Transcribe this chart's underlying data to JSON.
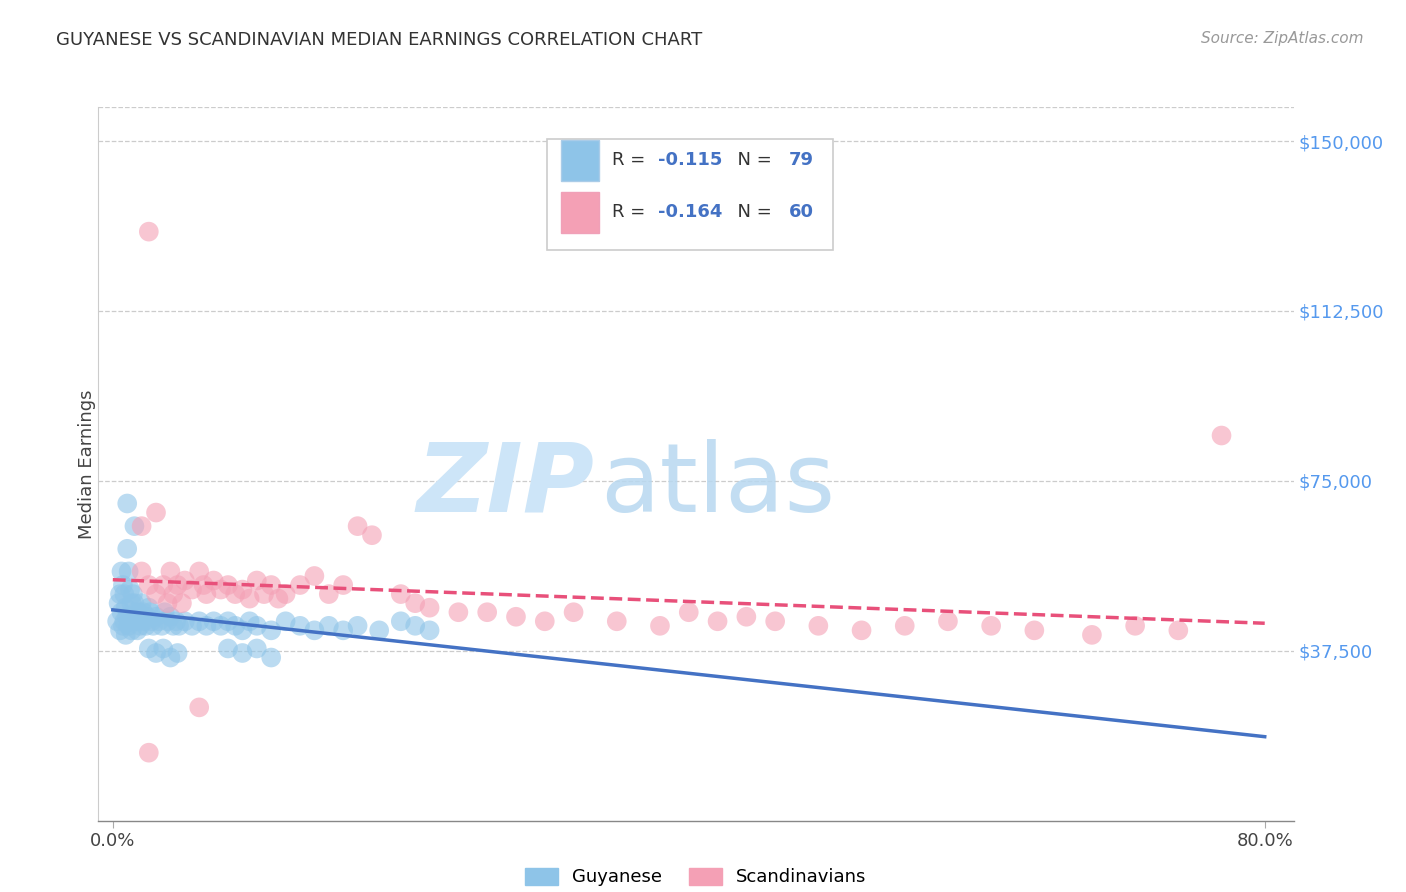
{
  "title": "GUYANESE VS SCANDINAVIAN MEDIAN EARNINGS CORRELATION CHART",
  "source": "Source: ZipAtlas.com",
  "ylabel": "Median Earnings",
  "y_ticks": [
    0,
    37500,
    75000,
    112500,
    150000
  ],
  "y_tick_labels": [
    "",
    "$37,500",
    "$75,000",
    "$112,500",
    "$150,000"
  ],
  "xlim": [
    0.0,
    0.8
  ],
  "ylim": [
    0,
    157500
  ],
  "background_color": "#ffffff",
  "guyanese_color": "#8ec4e8",
  "scandinavian_color": "#f4a0b5",
  "guyanese_line_color": "#4472c4",
  "scandinavian_line_color": "#e8507a",
  "watermark_zip_color": "#cce0f5",
  "watermark_atlas_color": "#b0d0f0",
  "legend_R_guyanese": "-0.115",
  "legend_N_guyanese": "79",
  "legend_R_scandinavian": "-0.164",
  "legend_N_scandinavian": "60",
  "guyanese_x": [
    0.003,
    0.004,
    0.005,
    0.005,
    0.006,
    0.006,
    0.007,
    0.007,
    0.008,
    0.008,
    0.009,
    0.009,
    0.01,
    0.01,
    0.01,
    0.011,
    0.011,
    0.012,
    0.012,
    0.013,
    0.013,
    0.014,
    0.014,
    0.015,
    0.015,
    0.016,
    0.017,
    0.017,
    0.018,
    0.019,
    0.02,
    0.021,
    0.022,
    0.023,
    0.024,
    0.025,
    0.026,
    0.027,
    0.028,
    0.03,
    0.032,
    0.034,
    0.036,
    0.038,
    0.04,
    0.042,
    0.044,
    0.046,
    0.05,
    0.055,
    0.06,
    0.065,
    0.07,
    0.075,
    0.08,
    0.085,
    0.09,
    0.095,
    0.1,
    0.11,
    0.12,
    0.13,
    0.14,
    0.15,
    0.16,
    0.17,
    0.185,
    0.2,
    0.21,
    0.22,
    0.025,
    0.03,
    0.035,
    0.04,
    0.045,
    0.08,
    0.09,
    0.1,
    0.11
  ],
  "guyanese_y": [
    44000,
    48000,
    50000,
    42000,
    55000,
    46000,
    52000,
    43000,
    50000,
    44000,
    47000,
    41000,
    70000,
    60000,
    45000,
    55000,
    43000,
    51000,
    44000,
    48000,
    42000,
    50000,
    44000,
    65000,
    48000,
    46000,
    44000,
    42000,
    46000,
    43000,
    48000,
    46000,
    44000,
    43000,
    45000,
    47000,
    46000,
    44000,
    43000,
    45000,
    44000,
    43000,
    46000,
    44000,
    45000,
    43000,
    44000,
    43000,
    44000,
    43000,
    44000,
    43000,
    44000,
    43000,
    44000,
    43000,
    42000,
    44000,
    43000,
    42000,
    44000,
    43000,
    42000,
    43000,
    42000,
    43000,
    42000,
    44000,
    43000,
    42000,
    38000,
    37000,
    38000,
    36000,
    37000,
    38000,
    37000,
    38000,
    36000
  ],
  "scandinavian_x": [
    0.02,
    0.02,
    0.025,
    0.025,
    0.03,
    0.03,
    0.035,
    0.038,
    0.04,
    0.042,
    0.045,
    0.048,
    0.05,
    0.055,
    0.06,
    0.063,
    0.065,
    0.07,
    0.075,
    0.08,
    0.085,
    0.09,
    0.095,
    0.1,
    0.105,
    0.11,
    0.115,
    0.12,
    0.13,
    0.14,
    0.15,
    0.16,
    0.17,
    0.18,
    0.2,
    0.21,
    0.22,
    0.24,
    0.26,
    0.28,
    0.3,
    0.32,
    0.35,
    0.38,
    0.4,
    0.42,
    0.44,
    0.46,
    0.49,
    0.52,
    0.55,
    0.58,
    0.61,
    0.64,
    0.68,
    0.71,
    0.74,
    0.77,
    0.025,
    0.06
  ],
  "scandinavian_y": [
    65000,
    55000,
    130000,
    52000,
    68000,
    50000,
    52000,
    48000,
    55000,
    50000,
    52000,
    48000,
    53000,
    51000,
    55000,
    52000,
    50000,
    53000,
    51000,
    52000,
    50000,
    51000,
    49000,
    53000,
    50000,
    52000,
    49000,
    50000,
    52000,
    54000,
    50000,
    52000,
    65000,
    63000,
    50000,
    48000,
    47000,
    46000,
    46000,
    45000,
    44000,
    46000,
    44000,
    43000,
    46000,
    44000,
    45000,
    44000,
    43000,
    42000,
    43000,
    44000,
    43000,
    42000,
    41000,
    43000,
    42000,
    85000,
    15000,
    25000
  ]
}
